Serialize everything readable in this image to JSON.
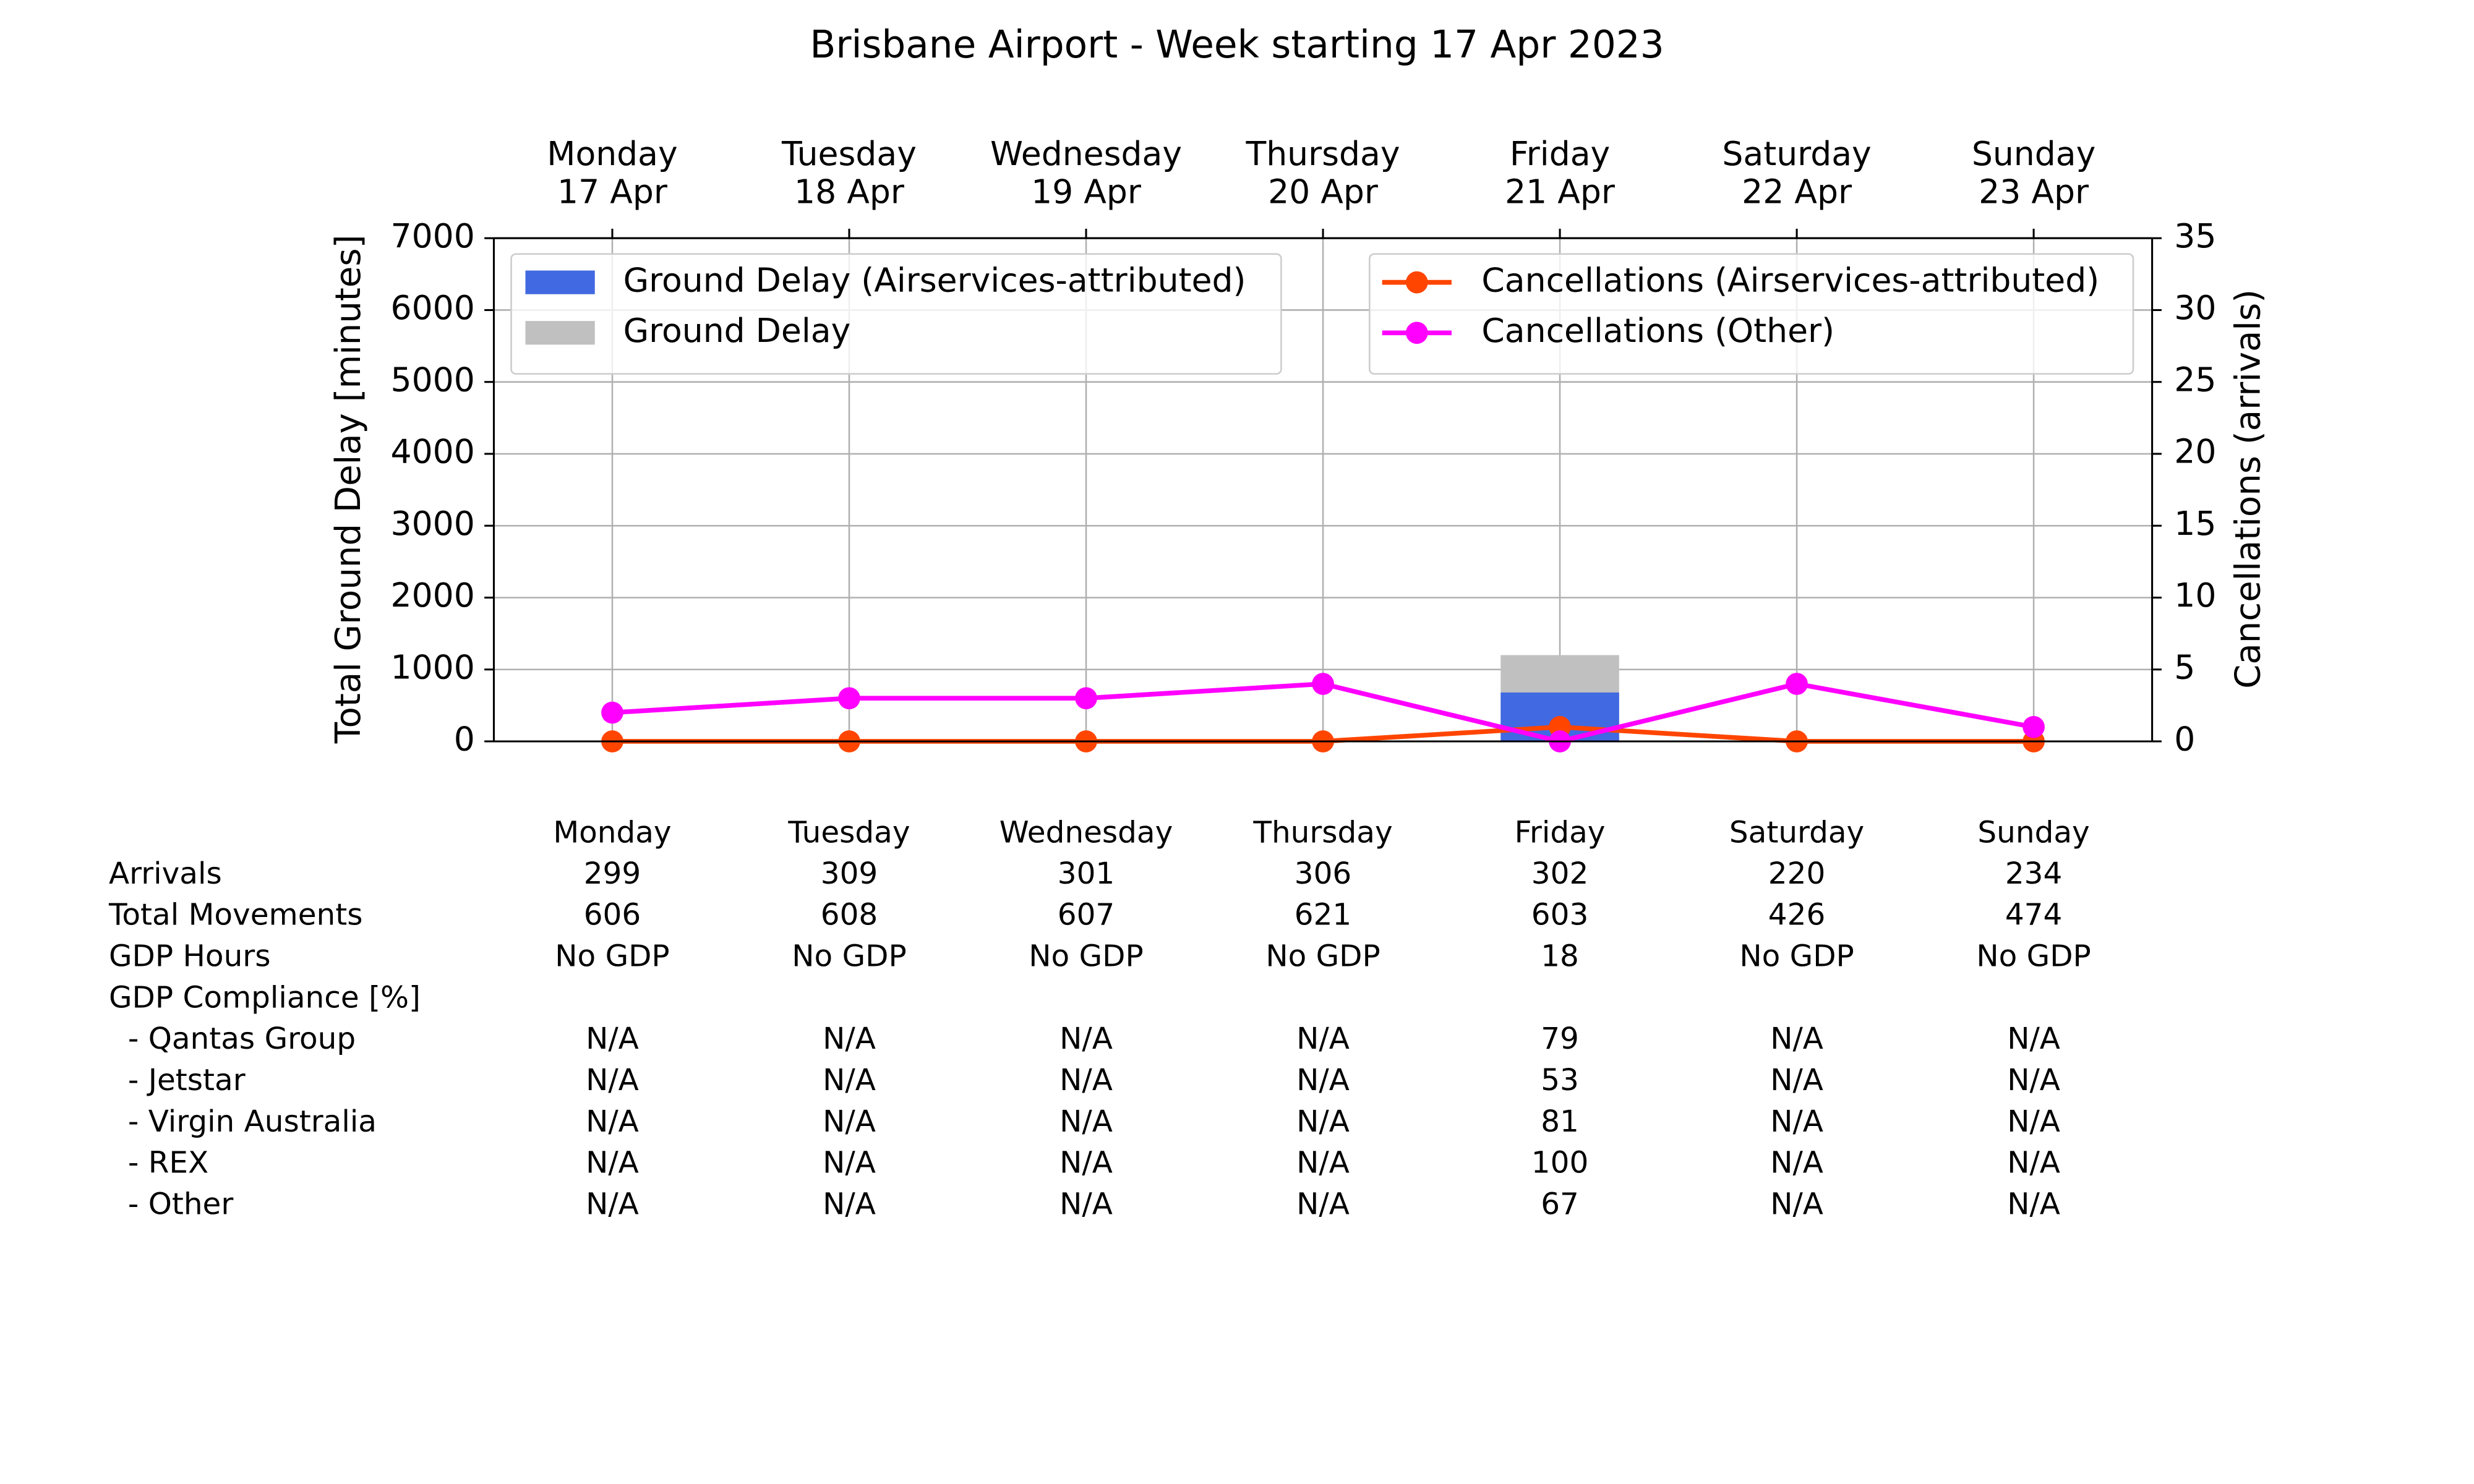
{
  "chart_data": {
    "type": "combo",
    "title": "Brisbane Airport - Week starting 17 Apr 2023",
    "categories": [
      [
        "Monday",
        "17 Apr"
      ],
      [
        "Tuesday",
        "18 Apr"
      ],
      [
        "Wednesday",
        "19 Apr"
      ],
      [
        "Thursday",
        "20 Apr"
      ],
      [
        "Friday",
        "21 Apr"
      ],
      [
        "Saturday",
        "22 Apr"
      ],
      [
        "Sunday",
        "23 Apr"
      ]
    ],
    "ylabel": "Total Ground Delay [minutes]",
    "y2label": "Cancellations (arrivals)",
    "ylim": [
      0,
      7000
    ],
    "yticks": [
      0,
      1000,
      2000,
      3000,
      4000,
      5000,
      6000,
      7000
    ],
    "y2lim": [
      0,
      35
    ],
    "y2ticks": [
      0,
      5,
      10,
      15,
      20,
      25,
      30,
      35
    ],
    "grid": true,
    "legend_loc": "upper left",
    "legend2_loc": "upper right",
    "series": [
      {
        "name": "Ground Delay (Airservices-attributed)",
        "type": "bar",
        "color": "#4169e1",
        "values": [
          0,
          0,
          0,
          0,
          680,
          0,
          0
        ]
      },
      {
        "name": "Ground Delay",
        "type": "bar",
        "color": "#c0c0c0",
        "values": [
          0,
          0,
          0,
          0,
          1200,
          0,
          0
        ]
      },
      {
        "name": "Cancellations (Airservices-attributed)",
        "type": "line",
        "axis": "y2",
        "color": "#ff4500",
        "values": [
          0,
          0,
          0,
          0,
          1,
          0,
          0
        ]
      },
      {
        "name": "Cancellations (Other)",
        "type": "line",
        "axis": "y2",
        "color": "#ff00ff",
        "values": [
          2,
          3,
          3,
          4,
          0,
          4,
          1
        ]
      }
    ]
  },
  "table": {
    "columns": [
      "Monday",
      "Tuesday",
      "Wednesday",
      "Thursday",
      "Friday",
      "Saturday",
      "Sunday"
    ],
    "rows": [
      [
        "Arrivals",
        299,
        309,
        301,
        306,
        302,
        220,
        234
      ],
      [
        "Total Movements",
        606,
        608,
        607,
        621,
        603,
        426,
        474
      ],
      [
        "GDP Hours",
        "No GDP",
        "No GDP",
        "No GDP",
        "No GDP",
        18,
        "No GDP",
        "No GDP"
      ],
      [
        "GDP Compliance [%]"
      ],
      [
        "  - Qantas Group",
        "N/A",
        "N/A",
        "N/A",
        "N/A",
        79,
        "N/A",
        "N/A"
      ],
      [
        "  - Jetstar",
        "N/A",
        "N/A",
        "N/A",
        "N/A",
        53,
        "N/A",
        "N/A"
      ],
      [
        "  - Virgin Australia",
        "N/A",
        "N/A",
        "N/A",
        "N/A",
        81,
        "N/A",
        "N/A"
      ],
      [
        "  - REX",
        "N/A",
        "N/A",
        "N/A",
        "N/A",
        100,
        "N/A",
        "N/A"
      ],
      [
        "  - Other",
        "N/A",
        "N/A",
        "N/A",
        "N/A",
        67,
        "N/A",
        "N/A"
      ]
    ]
  }
}
